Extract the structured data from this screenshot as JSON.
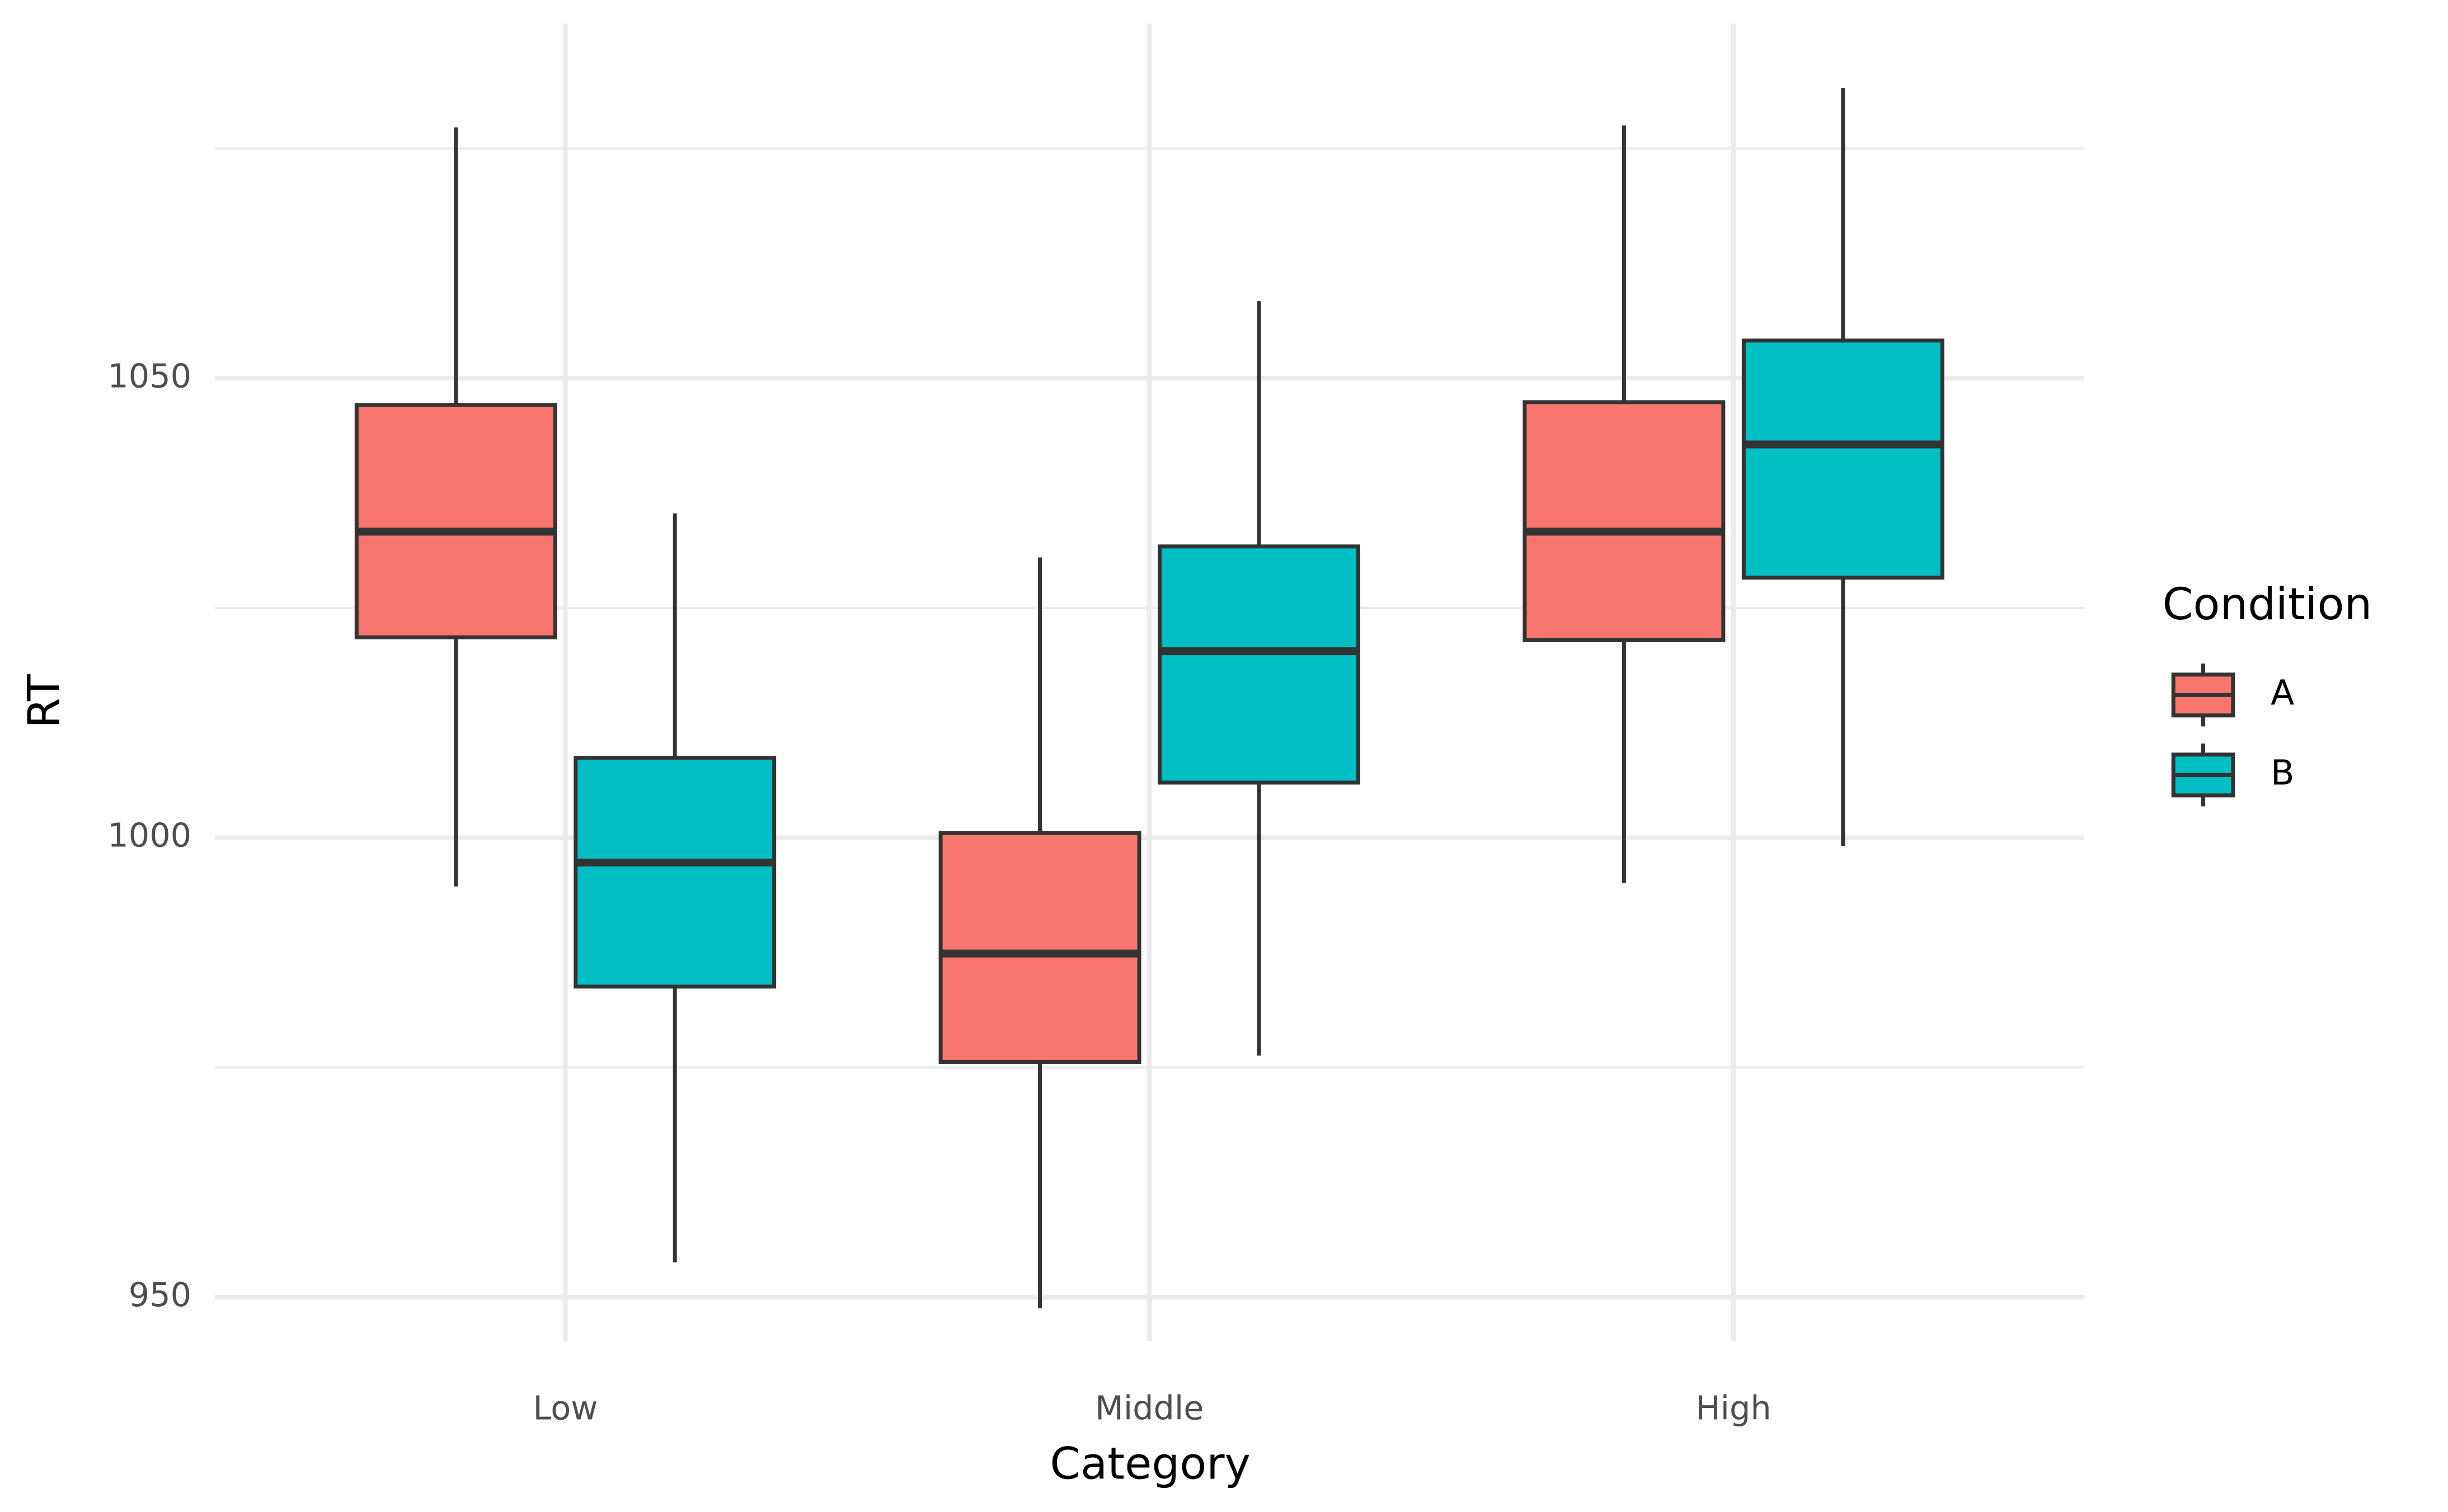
{
  "chart_data": {
    "type": "boxplot",
    "x_label": "Category",
    "y_label": "RT",
    "categories": [
      "Low",
      "Middle",
      "High"
    ],
    "legend_title": "Condition",
    "legend_position": "right",
    "series": [
      {
        "name": "A",
        "color": "#f8766d",
        "whisker_low": [
          994.7,
          948.8,
          995.1
        ],
        "q1": [
          1021.8,
          975.6,
          1021.5
        ],
        "median": [
          1033.3,
          987.4,
          1033.3
        ],
        "q3": [
          1047.1,
          1000.5,
          1047.4
        ],
        "whisker_high": [
          1077.3,
          1030.5,
          1077.5
        ]
      },
      {
        "name": "B",
        "color": "#00bfc4",
        "whisker_low": [
          953.8,
          976.3,
          999.1
        ],
        "q1": [
          983.8,
          1006.0,
          1028.3
        ],
        "median": [
          997.3,
          1020.3,
          1042.8
        ],
        "q3": [
          1008.7,
          1031.7,
          1054.1
        ],
        "whisker_high": [
          1035.3,
          1058.4,
          1081.6
        ]
      }
    ],
    "ylim": [
      945.2,
      1088.6
    ],
    "yticks": [
      950,
      1000,
      1050
    ],
    "y_minor_ticks": [
      975,
      1025,
      1075
    ],
    "grid": true
  }
}
